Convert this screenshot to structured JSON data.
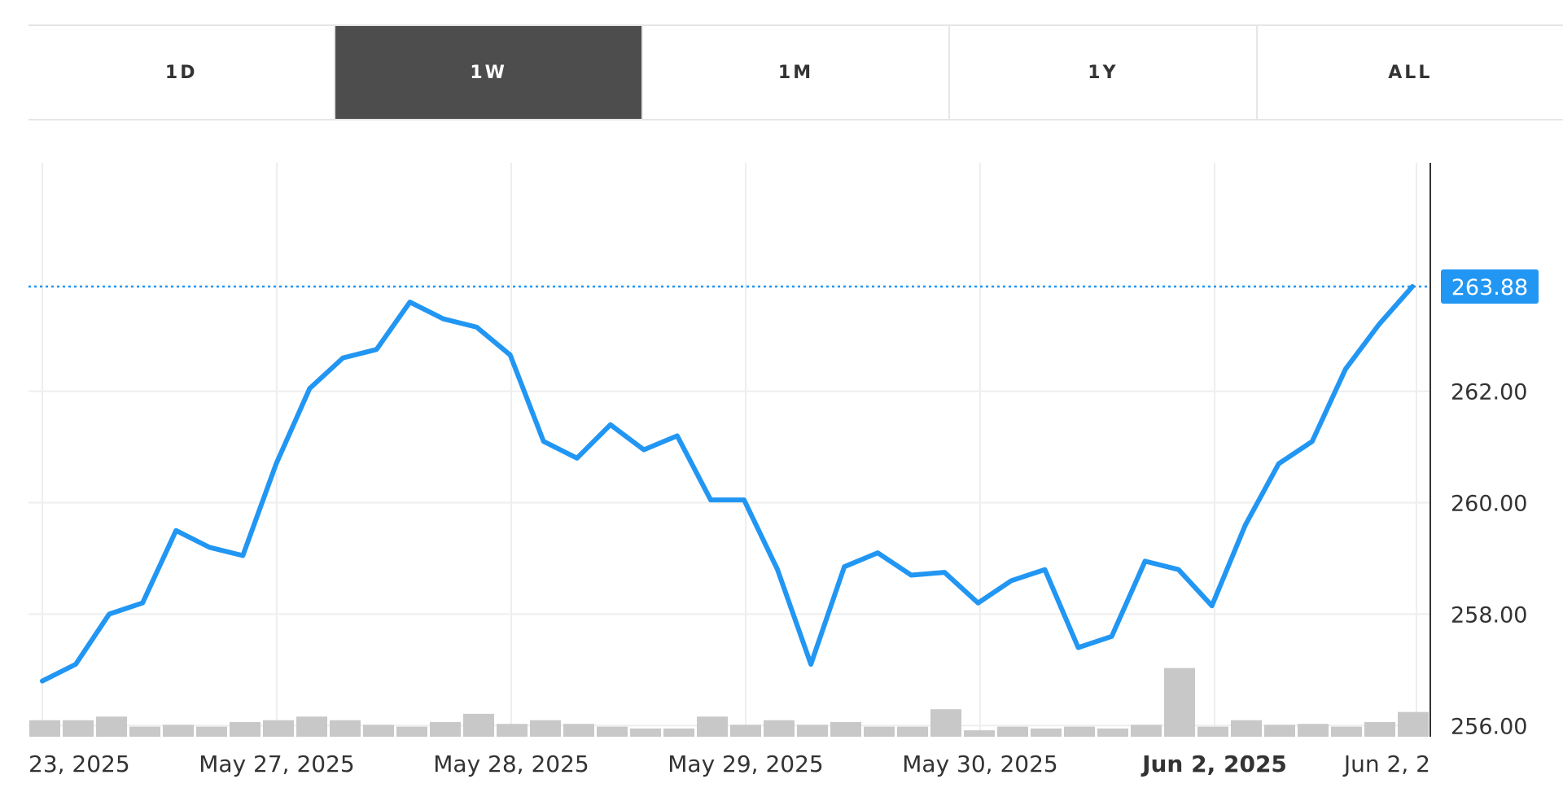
{
  "range_tabs": [
    {
      "label": "1D",
      "active": false
    },
    {
      "label": "1W",
      "active": true
    },
    {
      "label": "1M",
      "active": false
    },
    {
      "label": "1Y",
      "active": false
    },
    {
      "label": "ALL",
      "active": false
    }
  ],
  "chart_data": {
    "type": "line",
    "title": "",
    "xlabel": "",
    "ylabel": "",
    "x_labels": [
      {
        "label": "23, 2025",
        "bold": false
      },
      {
        "label": "May 27, 2025",
        "bold": false
      },
      {
        "label": "May 28, 2025",
        "bold": false
      },
      {
        "label": "May 29, 2025",
        "bold": false
      },
      {
        "label": "May 30, 2025",
        "bold": false
      },
      {
        "label": "Jun 2, 2025",
        "bold": true
      },
      {
        "label": "Jun 2, 2",
        "bold": false
      }
    ],
    "y_ticks": [
      "262.00",
      "260.00",
      "258.00",
      "256.00"
    ],
    "ylim": [
      255.8,
      266.1
    ],
    "grid": true,
    "line_color": "#2196f3",
    "current_price": {
      "value": 263.88,
      "label": "263.88",
      "color": "#2196f3"
    },
    "series": [
      {
        "values": [
          256.8,
          257.1,
          258.0,
          258.2,
          259.5,
          259.2,
          259.05,
          260.7,
          262.05,
          262.6,
          262.75,
          263.6,
          263.3,
          263.15,
          262.65,
          261.1,
          260.8,
          261.4,
          260.95,
          261.2,
          260.05,
          260.05,
          258.8,
          257.1,
          258.85,
          259.1,
          258.7,
          258.75,
          258.2,
          258.6,
          258.8,
          257.4,
          257.6,
          258.95,
          258.8,
          258.15,
          259.6,
          260.7,
          261.1,
          262.4,
          263.2,
          263.88
        ]
      }
    ],
    "volume": {
      "color": "#c8c8c8",
      "values": [
        18,
        18,
        22,
        11,
        13,
        11,
        16,
        18,
        22,
        18,
        13,
        11,
        16,
        25,
        14,
        18,
        14,
        11,
        9,
        9,
        22,
        13,
        18,
        13,
        16,
        11,
        11,
        30,
        7,
        11,
        9,
        11,
        9,
        13,
        75,
        11,
        18,
        13,
        14,
        11,
        16,
        27
      ]
    }
  }
}
